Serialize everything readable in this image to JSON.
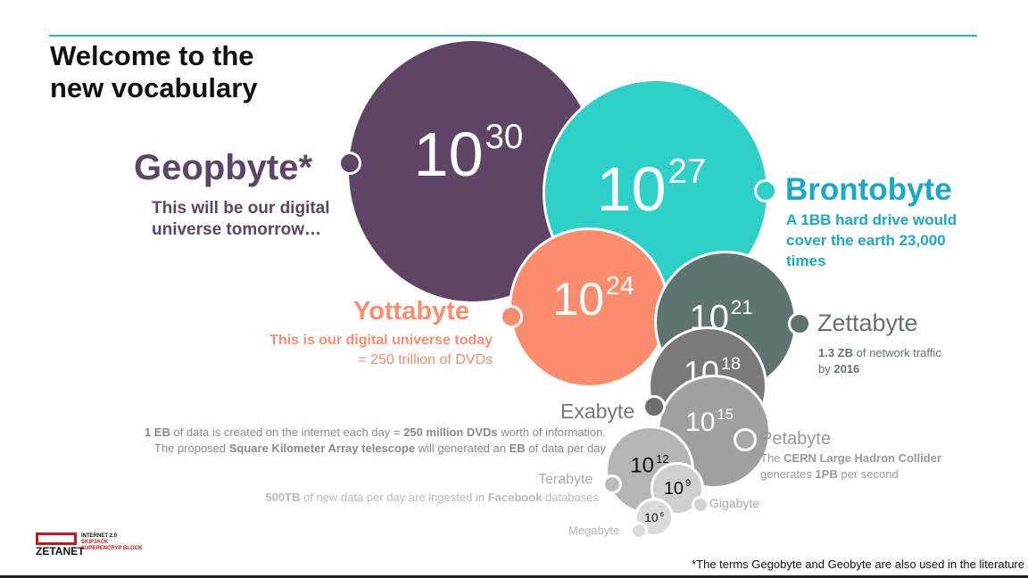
{
  "title": [
    "Welcome to the",
    "new vocabulary"
  ],
  "units": [
    {
      "name": "Geopbyte*",
      "power": "10",
      "exp": "30",
      "color": "#5e4565",
      "desc": [
        "This will be our digital",
        "universe tomorrow…"
      ]
    },
    {
      "name": "Brontobyte",
      "power": "10",
      "exp": "27",
      "color": "#2fd0c8",
      "desc": [
        "A 1BB hard drive would",
        "cover the earth 23,000",
        "times"
      ]
    },
    {
      "name": "Yottabyte",
      "power": "10",
      "exp": "24",
      "color": "#fb8c6e",
      "desc": [
        "This is our digital universe today",
        "= 250 trillion of DVDs"
      ]
    },
    {
      "name": "Zettabyte",
      "power": "10",
      "exp": "21",
      "color": "#5f7370",
      "desc_bold1": "1.3 ZB",
      "desc1": " of network traffic",
      "desc_pre2": "by ",
      "desc_bold2": "2016"
    },
    {
      "name": "Exabyte",
      "power": "10",
      "exp": "18",
      "color": "#7a7a7a"
    },
    {
      "name": "Petabyte",
      "power": "10",
      "exp": "15",
      "color": "#a0a0a0",
      "desc_pre1": "The ",
      "desc_bold1": "CERN Large Hadron Collider",
      "desc_pre2": "generates ",
      "desc_bold2": "1PB",
      "desc2": " per second"
    },
    {
      "name": "Terabyte",
      "power": "10",
      "exp": "12",
      "color": "#b5b5b5",
      "desc_bold1": "500TB",
      "desc1": " of new data per day are ingested in ",
      "desc_bold1b": "Facebook",
      "desc1b": " databases"
    },
    {
      "name": "Gigabyte",
      "power": "10",
      "exp": "9",
      "color": "#cfcfcf"
    },
    {
      "name": "Megabyte",
      "power": "10",
      "exp": "6",
      "color": "#dadada"
    }
  ],
  "exabyte_note": {
    "l1_b1": "1 EB",
    "l1_t1": " of data is created on the internet each day = ",
    "l1_b2": "250 million DVDs",
    "l1_t2": " worth of information.",
    "l2_t1": "The proposed ",
    "l2_b1": "Square Kilometer Array telescope",
    "l2_t2": " will generated an ",
    "l2_b2": "EB",
    "l2_t3": " of data per day"
  },
  "logo": {
    "name": "ZETANET",
    "tags": [
      "INTERNET 2.0",
      "SKIPJACK",
      "SUPERENCRYP BLOCK"
    ]
  },
  "footnote": "*The terms Gegobyte and Geobyte are also used in the literature"
}
